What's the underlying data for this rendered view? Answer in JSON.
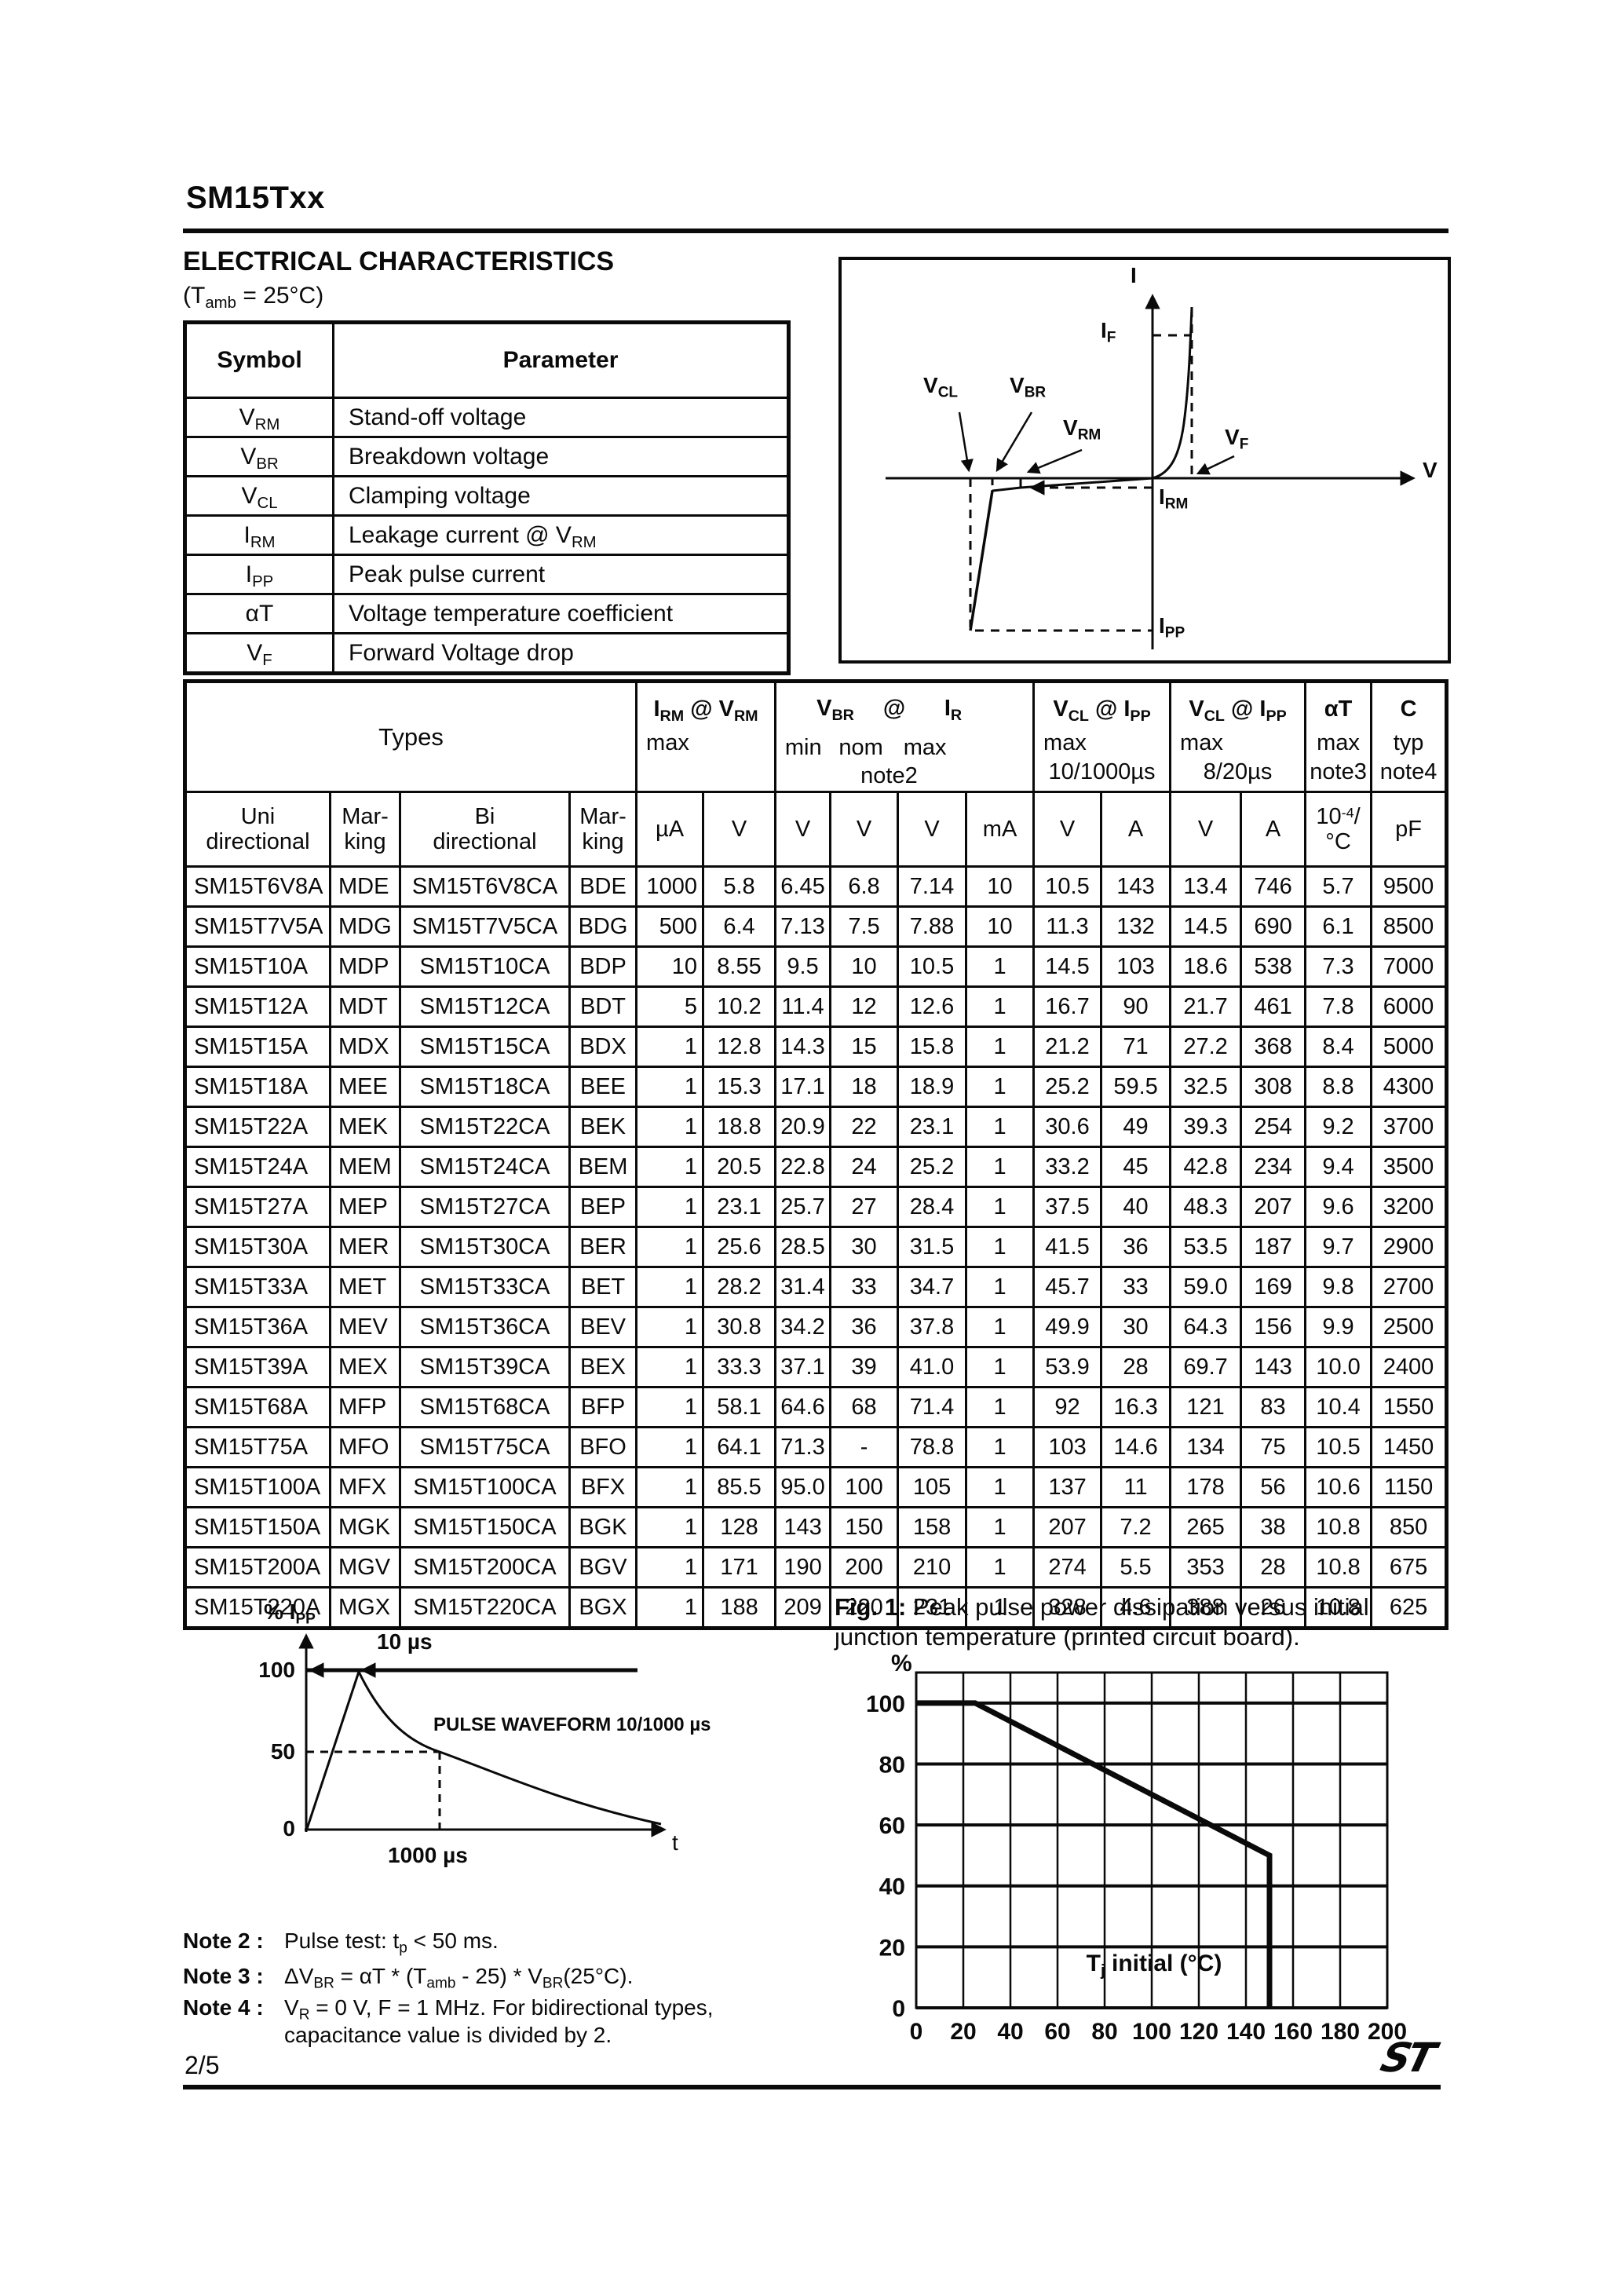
{
  "header": {
    "title": "SM15Txx"
  },
  "section": {
    "heading": "ELECTRICAL CHARACTERISTICS",
    "cond_pre": "(T",
    "cond_sub": "amb",
    "cond_post": " = 25°C)"
  },
  "symbol_table": {
    "col1": "Symbol",
    "col2": "Parameter",
    "rows": [
      {
        "sym": "V",
        "sub": "RM",
        "p1": "Stand-off voltage",
        "psub": "",
        "p2": ""
      },
      {
        "sym": "V",
        "sub": "BR",
        "p1": "Breakdown voltage",
        "psub": "",
        "p2": ""
      },
      {
        "sym": "V",
        "sub": "CL",
        "p1": "Clamping voltage",
        "psub": "",
        "p2": ""
      },
      {
        "sym": "I",
        "sub": "RM",
        "p1": "Leakage current @ V",
        "psub": "RM",
        "p2": ""
      },
      {
        "sym": "I",
        "sub": "PP",
        "p1": "Peak pulse current",
        "psub": "",
        "p2": ""
      },
      {
        "sym": "αT",
        "sub": "",
        "p1": "Voltage temperature coefficient",
        "psub": "",
        "p2": ""
      },
      {
        "sym": "V",
        "sub": "F",
        "p1": "Forward Voltage drop",
        "psub": "",
        "p2": ""
      }
    ]
  },
  "iv": {
    "labels": {
      "i": "I",
      "v": "V",
      "if": {
        "m": "I",
        "s": "F"
      },
      "vcl": {
        "m": "V",
        "s": "CL"
      },
      "vbr": {
        "m": "V",
        "s": "BR"
      },
      "vrm": {
        "m": "V",
        "s": "RM"
      },
      "vf": {
        "m": "V",
        "s": "F"
      },
      "irm": {
        "m": "I",
        "s": "RM"
      },
      "ipp": {
        "m": "I",
        "s": "PP"
      }
    }
  },
  "main_table": {
    "types_label": "Types",
    "irm_group": {
      "sym1": "I",
      "sub1": "RM",
      "at": " @ ",
      "sym2": "V",
      "sub2": "RM",
      "max": "max"
    },
    "vbr_group": {
      "sym1": "V",
      "sub1": "BR",
      "at": "@",
      "sym2": "I",
      "sub2": "R",
      "min": "min",
      "nom": "nom",
      "max": "max",
      "note": "note2"
    },
    "vcl1_group": {
      "sym1": "V",
      "sub1": "CL",
      "at": " @ ",
      "sym2": "I",
      "sub2": "PP",
      "max": "max",
      "pulse": "10/1000µs"
    },
    "vcl2_group": {
      "sym1": "V",
      "sub1": "CL",
      "at": " @ ",
      "sym2": "I",
      "sub2": "PP",
      "max": "max",
      "pulse": "8/20µs"
    },
    "at_group": {
      "label": "αT",
      "max": "max",
      "note": "note3"
    },
    "c_group": {
      "label": "C",
      "typ": "typ",
      "note": "note4"
    },
    "units": {
      "uni": "Uni\ndirectional",
      "mark1": "Mar-\nking",
      "bi": "Bi\ndirectional",
      "mark2": "Mar-\nking",
      "ua": "µA",
      "v1": "V",
      "v2": "V",
      "v3": "V",
      "v4": "V",
      "ma": "mA",
      "v5": "V",
      "a1": "A",
      "v6": "V",
      "a2": "A",
      "at_base": "10",
      "at_sup": "-4",
      "at_rest": "/°C",
      "pf": "pF"
    },
    "rows": [
      [
        "SM15T6V8A",
        "MDE",
        "SM15T6V8CA",
        "BDE",
        "1000",
        "5.8",
        "6.45",
        "6.8",
        "7.14",
        "10",
        "10.5",
        "143",
        "13.4",
        "746",
        "5.7",
        "9500"
      ],
      [
        "SM15T7V5A",
        "MDG",
        "SM15T7V5CA",
        "BDG",
        "500",
        "6.4",
        "7.13",
        "7.5",
        "7.88",
        "10",
        "11.3",
        "132",
        "14.5",
        "690",
        "6.1",
        "8500"
      ],
      [
        "SM15T10A",
        "MDP",
        "SM15T10CA",
        "BDP",
        "10",
        "8.55",
        "9.5",
        "10",
        "10.5",
        "1",
        "14.5",
        "103",
        "18.6",
        "538",
        "7.3",
        "7000"
      ],
      [
        "SM15T12A",
        "MDT",
        "SM15T12CA",
        "BDT",
        "5",
        "10.2",
        "11.4",
        "12",
        "12.6",
        "1",
        "16.7",
        "90",
        "21.7",
        "461",
        "7.8",
        "6000"
      ],
      [
        "SM15T15A",
        "MDX",
        "SM15T15CA",
        "BDX",
        "1",
        "12.8",
        "14.3",
        "15",
        "15.8",
        "1",
        "21.2",
        "71",
        "27.2",
        "368",
        "8.4",
        "5000"
      ],
      [
        "SM15T18A",
        "MEE",
        "SM15T18CA",
        "BEE",
        "1",
        "15.3",
        "17.1",
        "18",
        "18.9",
        "1",
        "25.2",
        "59.5",
        "32.5",
        "308",
        "8.8",
        "4300"
      ],
      [
        "SM15T22A",
        "MEK",
        "SM15T22CA",
        "BEK",
        "1",
        "18.8",
        "20.9",
        "22",
        "23.1",
        "1",
        "30.6",
        "49",
        "39.3",
        "254",
        "9.2",
        "3700"
      ],
      [
        "SM15T24A",
        "MEM",
        "SM15T24CA",
        "BEM",
        "1",
        "20.5",
        "22.8",
        "24",
        "25.2",
        "1",
        "33.2",
        "45",
        "42.8",
        "234",
        "9.4",
        "3500"
      ],
      [
        "SM15T27A",
        "MEP",
        "SM15T27CA",
        "BEP",
        "1",
        "23.1",
        "25.7",
        "27",
        "28.4",
        "1",
        "37.5",
        "40",
        "48.3",
        "207",
        "9.6",
        "3200"
      ],
      [
        "SM15T30A",
        "MER",
        "SM15T30CA",
        "BER",
        "1",
        "25.6",
        "28.5",
        "30",
        "31.5",
        "1",
        "41.5",
        "36",
        "53.5",
        "187",
        "9.7",
        "2900"
      ],
      [
        "SM15T33A",
        "MET",
        "SM15T33CA",
        "BET",
        "1",
        "28.2",
        "31.4",
        "33",
        "34.7",
        "1",
        "45.7",
        "33",
        "59.0",
        "169",
        "9.8",
        "2700"
      ],
      [
        "SM15T36A",
        "MEV",
        "SM15T36CA",
        "BEV",
        "1",
        "30.8",
        "34.2",
        "36",
        "37.8",
        "1",
        "49.9",
        "30",
        "64.3",
        "156",
        "9.9",
        "2500"
      ],
      [
        "SM15T39A",
        "MEX",
        "SM15T39CA",
        "BEX",
        "1",
        "33.3",
        "37.1",
        "39",
        "41.0",
        "1",
        "53.9",
        "28",
        "69.7",
        "143",
        "10.0",
        "2400"
      ],
      [
        "SM15T68A",
        "MFP",
        "SM15T68CA",
        "BFP",
        "1",
        "58.1",
        "64.6",
        "68",
        "71.4",
        "1",
        "92",
        "16.3",
        "121",
        "83",
        "10.4",
        "1550"
      ],
      [
        "SM15T75A",
        "MFO",
        "SM15T75CA",
        "BFO",
        "1",
        "64.1",
        "71.3",
        "-",
        "78.8",
        "1",
        "103",
        "14.6",
        "134",
        "75",
        "10.5",
        "1450"
      ],
      [
        "SM15T100A",
        "MFX",
        "SM15T100CA",
        "BFX",
        "1",
        "85.5",
        "95.0",
        "100",
        "105",
        "1",
        "137",
        "11",
        "178",
        "56",
        "10.6",
        "1150"
      ],
      [
        "SM15T150A",
        "MGK",
        "SM15T150CA",
        "BGK",
        "1",
        "128",
        "143",
        "150",
        "158",
        "1",
        "207",
        "7.2",
        "265",
        "38",
        "10.8",
        "850"
      ],
      [
        "SM15T200A",
        "MGV",
        "SM15T200CA",
        "BGV",
        "1",
        "171",
        "190",
        "200",
        "210",
        "1",
        "274",
        "5.5",
        "353",
        "28",
        "10.8",
        "675"
      ],
      [
        "SM15T220A",
        "MGX",
        "SM15T220CA",
        "BGX",
        "1",
        "188",
        "209",
        "220",
        "231",
        "1",
        "328",
        "4.6",
        "388",
        "26",
        "10.8",
        "625"
      ]
    ]
  },
  "waveform": {
    "ylabel_m": "% I",
    "ylabel_s": "PP",
    "t100": "100",
    "t50": "50",
    "t0": "0",
    "us10": "10 µs",
    "pulse": "PULSE WAVEFORM 10/1000 µs",
    "us1000": "1000 µs",
    "t": "t"
  },
  "fig1": {
    "caption_bold": "Fig. 1:",
    "caption_rest": " Peak pulse power dissipation versus initial",
    "caption_line2": "junction temperature (printed circuit board).",
    "ylabel": "%",
    "xlabel_m": "T",
    "xlabel_s": "j",
    "xlabel_rest": " initial (°C)",
    "chart_data": {
      "type": "line",
      "title": "Peak pulse power dissipation versus initial junction temperature (printed circuit board)",
      "xlabel": "Tj initial (°C)",
      "ylabel": "%",
      "x": [
        0,
        25,
        150,
        150
      ],
      "y": [
        100,
        100,
        50,
        0
      ],
      "xlim": [
        0,
        200
      ],
      "ylim": [
        0,
        110
      ],
      "xticks": [
        0,
        20,
        40,
        60,
        80,
        100,
        120,
        140,
        160,
        180,
        200
      ],
      "yticks": [
        0,
        20,
        40,
        60,
        80,
        100
      ],
      "grid": true,
      "legend": false
    }
  },
  "notes": {
    "n2": {
      "label": "Note 2 :",
      "t1": "Pulse test: t",
      "s1": "p",
      "t2": " < 50 ms."
    },
    "n3": {
      "label": "Note 3 :",
      "t1": "ΔV",
      "s1": "BR",
      "t2": " = αT * (T",
      "s2": "amb",
      "t3": " - 25) * V",
      "s3": "BR",
      "t4": "(25°C)."
    },
    "n4": {
      "label": "Note 4 :",
      "t1": "V",
      "s1": "R",
      "t2": " = 0 V,  F = 1 MHz. For bidirectional types,",
      "line2": "capacitance value is divided by 2."
    }
  },
  "footer": {
    "page": "2/5",
    "logo_text": "ST"
  }
}
